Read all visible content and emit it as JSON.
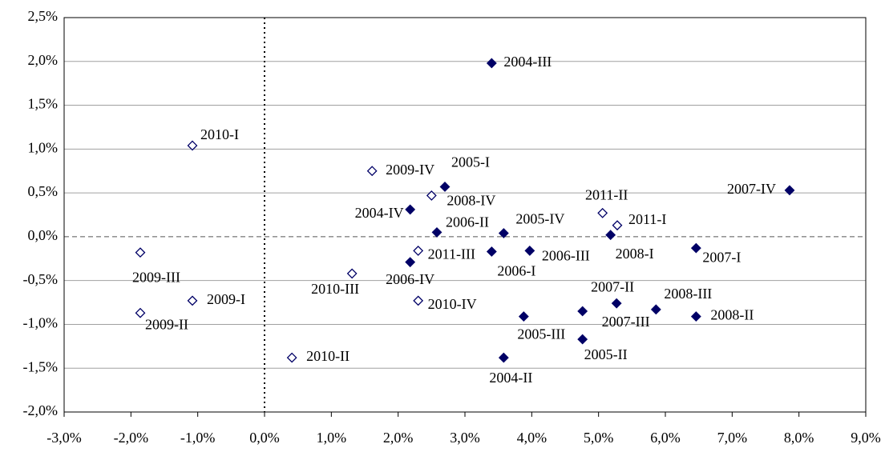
{
  "chart_data": {
    "type": "scatter",
    "xlim": [
      -3,
      9
    ],
    "ylim": [
      -2,
      2.5
    ],
    "xticks": [
      {
        "value": -3,
        "label": "-3,0%"
      },
      {
        "value": -2,
        "label": "-2,0%"
      },
      {
        "value": -1,
        "label": "-1,0%"
      },
      {
        "value": 0,
        "label": "0,0%"
      },
      {
        "value": 1,
        "label": "1,0%"
      },
      {
        "value": 2,
        "label": "2,0%"
      },
      {
        "value": 3,
        "label": "3,0%"
      },
      {
        "value": 4,
        "label": "4,0%"
      },
      {
        "value": 5,
        "label": "5,0%"
      },
      {
        "value": 6,
        "label": "6,0%"
      },
      {
        "value": 7,
        "label": "7,0%"
      },
      {
        "value": 8,
        "label": "8,0%"
      },
      {
        "value": 9,
        "label": "9,0%"
      }
    ],
    "yticks": [
      {
        "value": -2,
        "label": "-2,0%"
      },
      {
        "value": -1.5,
        "label": "-1,5%"
      },
      {
        "value": -1,
        "label": "-1,0%"
      },
      {
        "value": -0.5,
        "label": "-0,5%"
      },
      {
        "value": 0,
        "label": "0,0%"
      },
      {
        "value": 0.5,
        "label": "0,5%"
      },
      {
        "value": 1,
        "label": "1,0%"
      },
      {
        "value": 1.5,
        "label": "1,5%"
      },
      {
        "value": 2,
        "label": "2,0%"
      },
      {
        "value": 2.5,
        "label": "2,5%"
      }
    ],
    "grid": true,
    "series": [
      {
        "color": "#000066",
        "marker": "filled-diamond",
        "x": [
          3.4,
          2.7,
          2.18,
          2.58,
          3.58,
          7.86,
          5.18,
          6.46,
          3.97,
          3.4,
          2.18,
          5.27,
          5.86,
          3.88,
          4.76,
          6.46,
          4.76,
          3.58
        ],
        "values": [
          1.98,
          0.57,
          0.31,
          0.05,
          0.04,
          0.53,
          0.02,
          -0.13,
          -0.16,
          -0.17,
          -0.29,
          -0.76,
          -0.83,
          -0.91,
          -1.17,
          -0.91,
          -0.85,
          -1.38
        ],
        "labels": [
          "2004-III",
          "2005-I",
          "2004-IV",
          "2006-II",
          "2005-IV",
          "2007-IV",
          "2008-I",
          "2007-I",
          "2006-III",
          "2006-I",
          "2006-IV",
          "2007-II",
          "2008-III",
          "2005-III",
          "2005-II",
          "2008-II",
          "2007-III",
          "2004-II"
        ]
      },
      {
        "color": "#000066",
        "marker": "hollow-diamond",
        "x": [
          -1.08,
          1.61,
          2.5,
          5.06,
          5.28,
          2.3,
          1.31,
          2.3,
          -1.86,
          -1.08,
          -1.86,
          0.41
        ],
        "values": [
          1.04,
          0.75,
          0.47,
          0.27,
          0.13,
          -0.16,
          -0.42,
          -0.73,
          -0.18,
          -0.73,
          -0.87,
          -1.38
        ],
        "labels": [
          "2010-I",
          "2009-IV",
          "2008-IV",
          "2011-II",
          "2011-I",
          "2011-III",
          "2010-III",
          "2010-IV",
          "2009-III",
          "2009-I",
          "2009-II",
          "2010-II"
        ]
      }
    ]
  }
}
